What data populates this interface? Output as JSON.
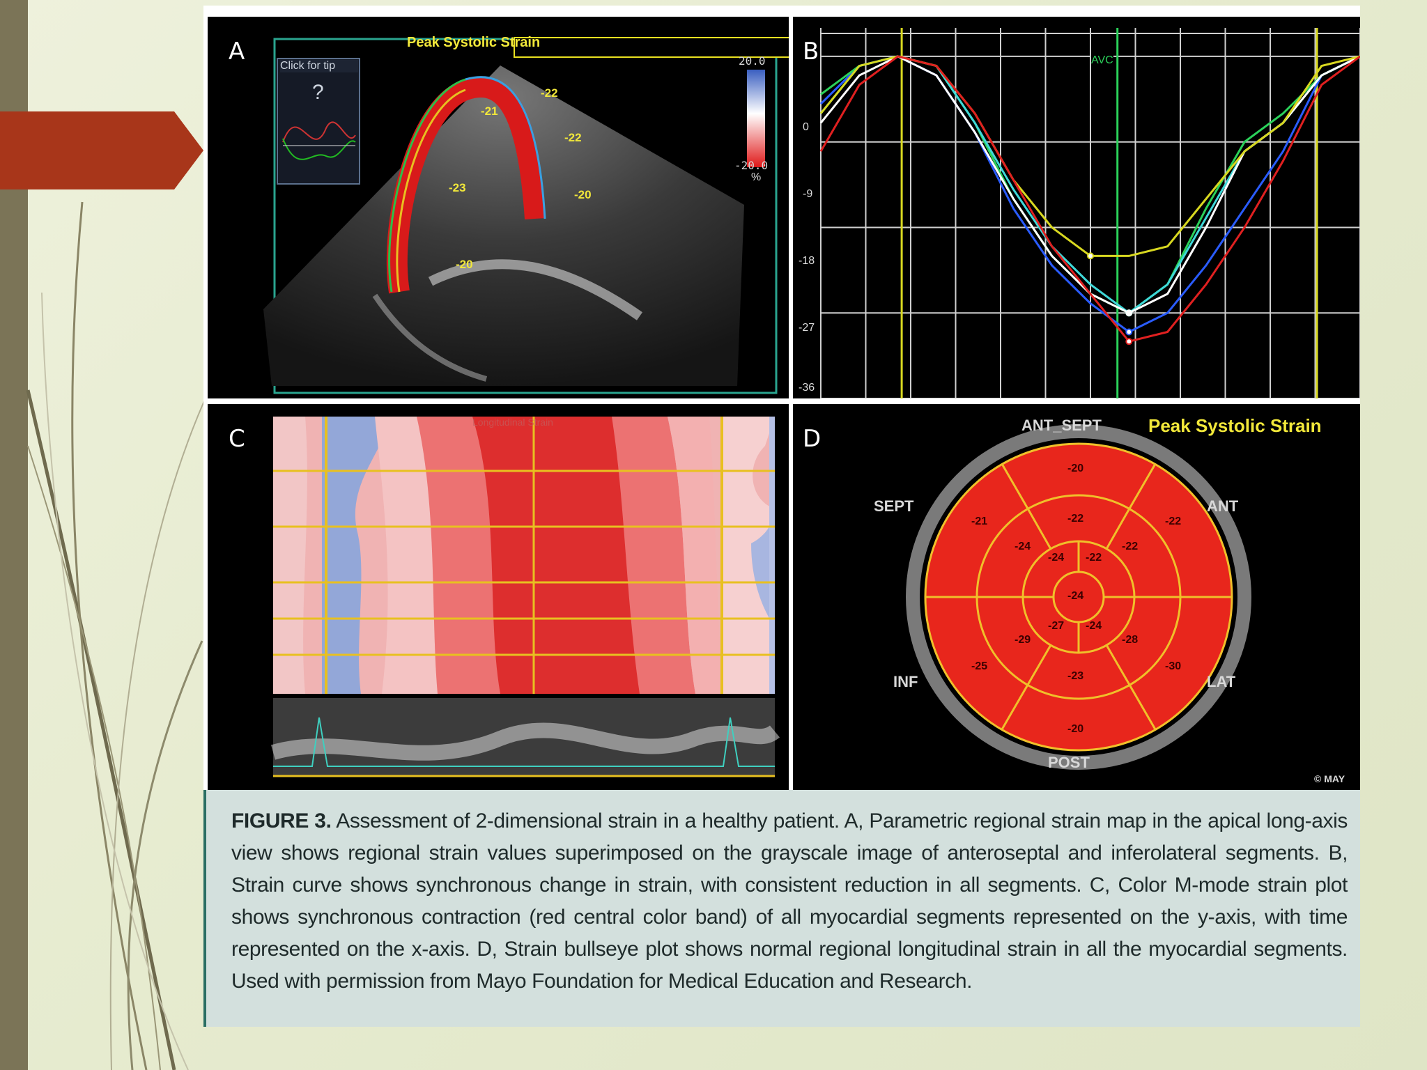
{
  "slide": {
    "colors": {
      "background": "#e6ebcf",
      "left_bar": "#7b7457",
      "arrow": "#a8361a"
    }
  },
  "panel_a": {
    "label": "A",
    "title": "Peak Systolic Strain",
    "help_button": "Click for tip",
    "help_glyph": "?",
    "scale_top": "20.0",
    "scale_bottom": "-20.0",
    "scale_unit": "%",
    "segments": [
      "-21",
      "-22",
      "-22",
      "-20",
      "-23",
      "-20"
    ]
  },
  "panel_b": {
    "label": "B",
    "marker": "AVC",
    "y_ticks": [
      "0",
      "-9",
      "-18",
      "-27",
      "-36"
    ]
  },
  "panel_c": {
    "label": "C",
    "heading": "Longitudinal Strain"
  },
  "panel_d": {
    "label": "D",
    "title": "Peak Systolic Strain",
    "walls": {
      "top": "ANT_SEPT",
      "upper_left": "SEPT",
      "upper_right": "ANT",
      "lower_left": "INF",
      "lower_right": "LAT",
      "bottom": "POST"
    },
    "basal": [
      "-20",
      "-22",
      "-30",
      "-20",
      "-25",
      "-21"
    ],
    "mid": [
      "-22",
      "-22",
      "-28",
      "-23",
      "-29",
      "-24"
    ],
    "apical": [
      "-22",
      "-24",
      "-27",
      "-24"
    ],
    "apex": "-24",
    "copyright": "© MAY"
  },
  "caption": {
    "label": "FIGURE 3.",
    "text": " Assessment of 2-dimensional strain in a healthy patient. A, Parametric regional strain map in the apical long-axis view shows regional strain values superimposed on the grayscale image of anteroseptal and inferolateral segments. B, Strain curve shows synchronous change in strain, with consistent reduction in all segments. C, Color M-mode strain plot shows synchronous contraction (red central color band) of all myocardial segments represented on the y-axis, with time represented on the x-axis. D, Strain bullseye plot shows normal regional longitudinal strain in all the myocardial segments. Used with permission from Mayo Foundation for Medical Education and Research."
  },
  "chart_data": {
    "type": "line",
    "y_ticks": [
      "0",
      "-9",
      "-18",
      "-27",
      "-36"
    ],
    "ylim": [
      -36,
      3
    ],
    "series": [
      {
        "values": [
          -5,
          -1,
          0,
          -2,
          -8,
          -16,
          -22,
          -26,
          -29,
          -27,
          -22,
          -16,
          -10,
          -2,
          0
        ]
      },
      {
        "values": [
          -4,
          -1,
          0,
          -1,
          -7,
          -15,
          -21,
          -25,
          -27,
          -24,
          -16,
          -9,
          -6,
          -2,
          0
        ]
      },
      {
        "values": [
          -6,
          -1,
          0,
          -1,
          -7,
          -14,
          -20,
          -24,
          -27,
          -24,
          -17,
          -10,
          -7,
          -2,
          0
        ]
      },
      {
        "values": [
          -7,
          -2,
          0,
          -2,
          -8,
          -15,
          -21,
          -25,
          -27,
          -25,
          -18,
          -10,
          -7,
          -2,
          0
        ]
      },
      {
        "values": [
          -6,
          -1,
          0,
          -1,
          -6,
          -13,
          -18,
          -21,
          -21,
          -20,
          -15,
          -10,
          -7,
          -1,
          0
        ]
      },
      {
        "values": [
          -10,
          -3,
          0,
          -1,
          -6,
          -13,
          -20,
          -25,
          -30,
          -29,
          -24,
          -18,
          -11,
          -3,
          0
        ]
      }
    ]
  }
}
